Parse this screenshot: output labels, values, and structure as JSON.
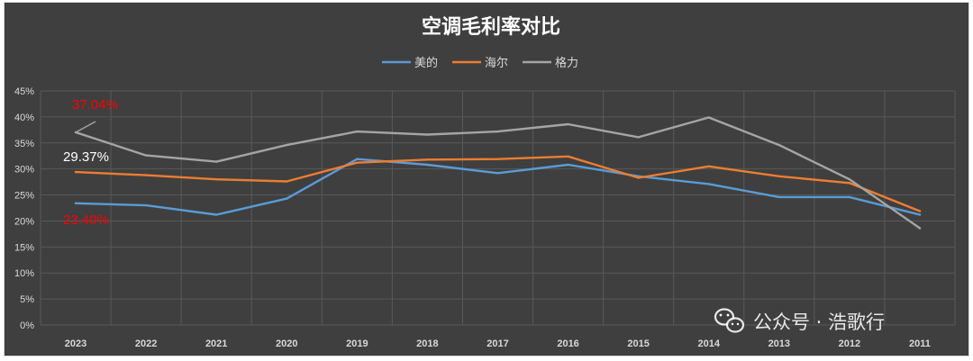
{
  "chart_data": {
    "type": "line",
    "title": "空调毛利率对比",
    "categories": [
      "2023",
      "2022",
      "2021",
      "2020",
      "2019",
      "2018",
      "2017",
      "2016",
      "2015",
      "2014",
      "2013",
      "2012",
      "2011"
    ],
    "series": [
      {
        "name": "美的",
        "color": "#5b9bd5",
        "values": [
          23.4,
          23.0,
          21.2,
          24.3,
          31.9,
          30.8,
          29.2,
          30.8,
          28.6,
          27.1,
          24.6,
          24.6,
          21.2
        ]
      },
      {
        "name": "海尔",
        "color": "#ed7d31",
        "values": [
          29.4,
          28.8,
          28.0,
          27.6,
          31.2,
          31.8,
          31.9,
          32.4,
          28.3,
          30.5,
          28.6,
          27.3,
          21.9
        ]
      },
      {
        "name": "格力",
        "color": "#a5a5a5",
        "values": [
          37.04,
          32.6,
          31.4,
          34.6,
          37.2,
          36.6,
          37.2,
          38.6,
          36.1,
          39.9,
          34.6,
          28.0,
          18.6
        ]
      }
    ],
    "ylim": [
      0,
      45
    ],
    "yticks": [
      "0%",
      "5%",
      "10%",
      "15%",
      "20%",
      "25%",
      "30%",
      "35%",
      "40%",
      "45%"
    ],
    "grid": true,
    "legend_position": "top-center",
    "annotations": [
      {
        "text": "37.04%",
        "color": "#ff0000"
      },
      {
        "text": "29.37%",
        "color": "#ffffff"
      },
      {
        "text": "23.40%",
        "color": "#ff0000"
      }
    ]
  },
  "watermark": {
    "text": "公众号 · 浩歌行",
    "icon": "wechat-icon"
  }
}
